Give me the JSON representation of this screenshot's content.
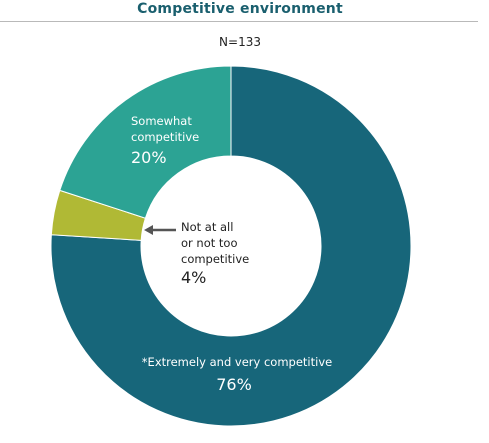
{
  "title": "Competitive environment",
  "subtitle": "N=133",
  "colors": {
    "title": "#1a5f6e",
    "slice1": "#17667a",
    "slice2": "#b0b935",
    "slice3": "#2ca394",
    "arrow": "#555555"
  },
  "chart_data": {
    "type": "pie",
    "donut": true,
    "slices": [
      {
        "name": "*Extremely and very competitive",
        "value": 76,
        "label": "76%",
        "color": "#17667a"
      },
      {
        "name": "Not at all or not too competitive",
        "lines": [
          "Not at all",
          "or not too",
          "competitive"
        ],
        "value": 4,
        "label": "4%",
        "color": "#b0b935"
      },
      {
        "name": "Somewhat competitive",
        "lines": [
          "Somewhat",
          "competitive"
        ],
        "value": 20,
        "label": "20%",
        "color": "#2ca394"
      }
    ]
  }
}
